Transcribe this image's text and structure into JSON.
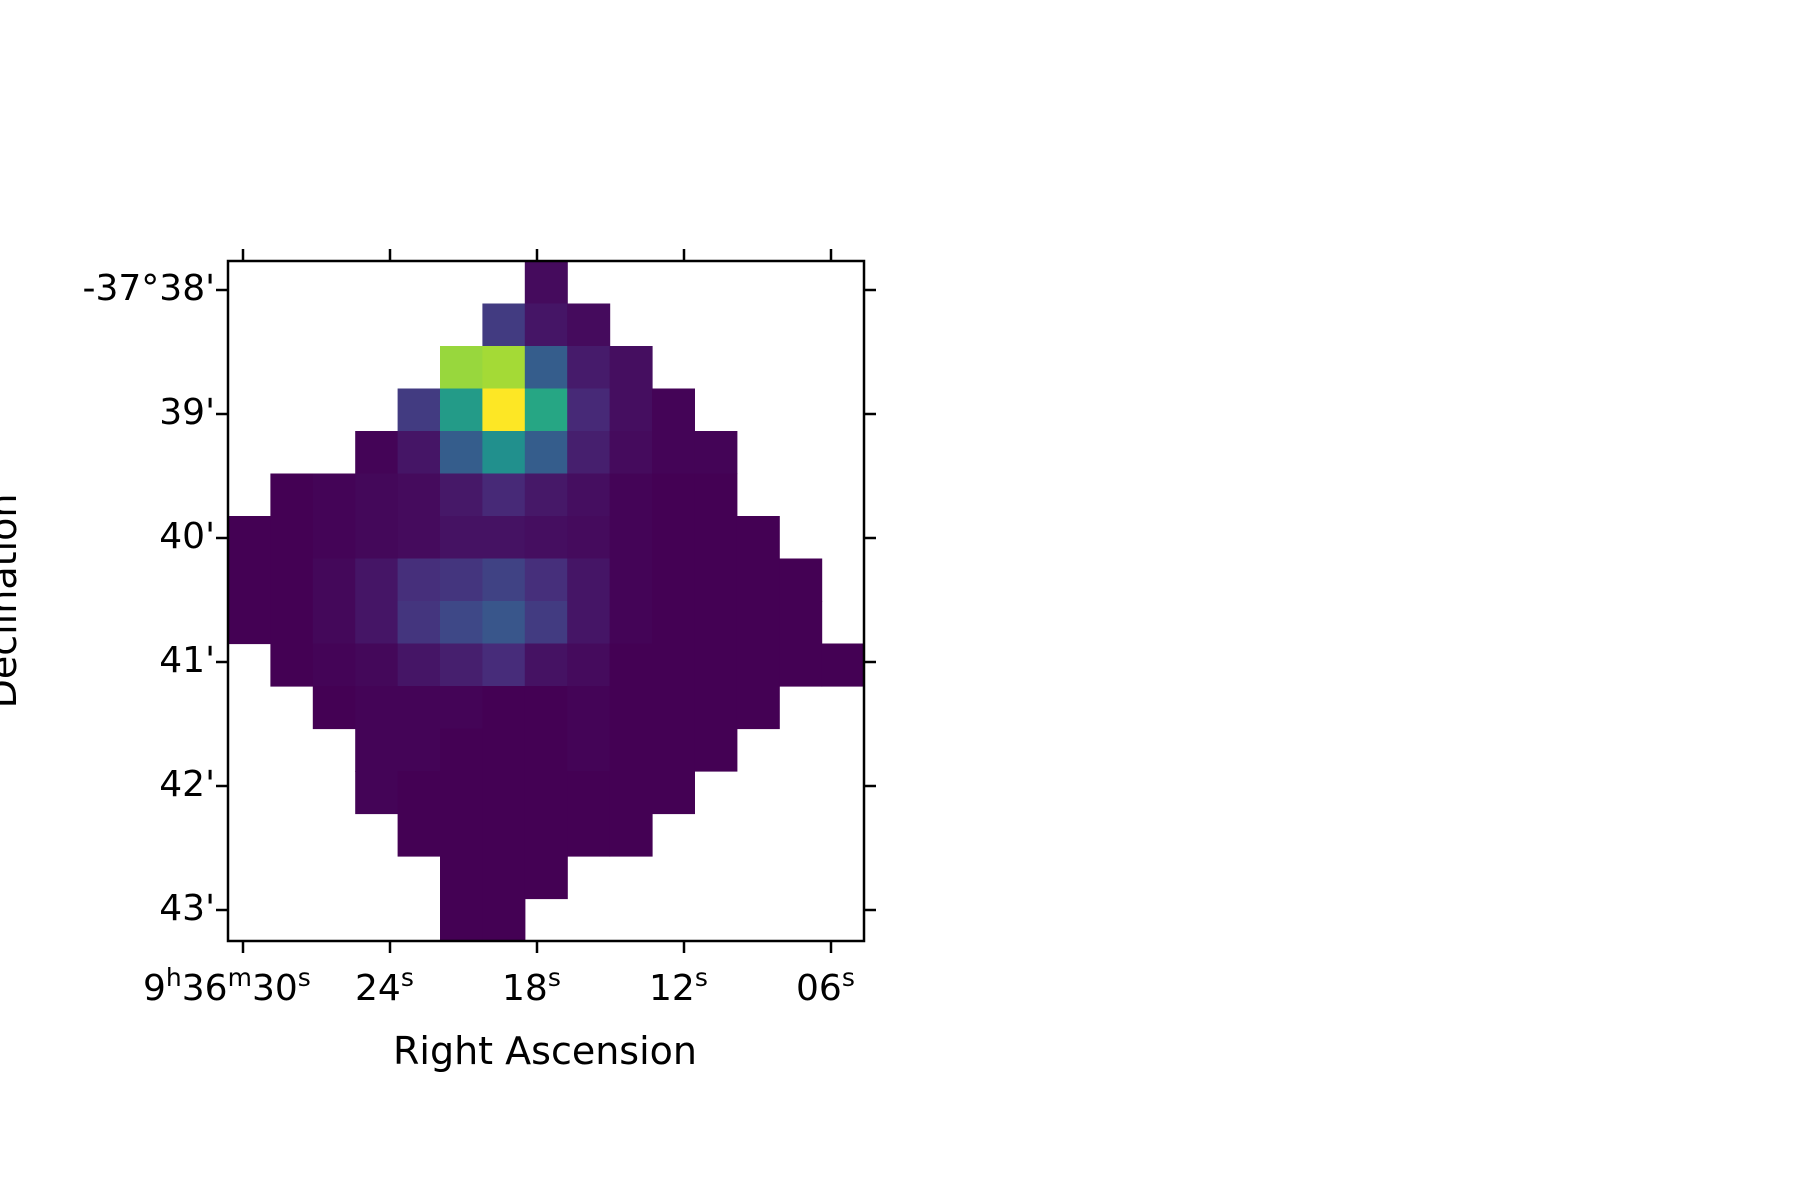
{
  "chart_data": {
    "type": "heatmap",
    "title": "",
    "xlabel": "Right Ascension",
    "ylabel": "Declination",
    "colormap": "viridis",
    "x_ticks": [
      {
        "main": "9",
        "unit1": "h",
        "mid": "36",
        "unit2": "m",
        "last": "30",
        "unit3": "s"
      },
      {
        "main": "24",
        "unit1": "s"
      },
      {
        "main": "18",
        "unit1": "s"
      },
      {
        "main": "12",
        "unit1": "s"
      },
      {
        "main": "06",
        "unit1": "s"
      }
    ],
    "y_ticks": [
      "-37°38'",
      "39'",
      "40'",
      "41'",
      "42'",
      "43'"
    ],
    "grid": false,
    "value_range": [
      0,
      1
    ],
    "pixel_values": [
      [
        null,
        null,
        null,
        null,
        null,
        null,
        null,
        0.03,
        null,
        null,
        null,
        null,
        null,
        null,
        null
      ],
      [
        null,
        null,
        null,
        null,
        null,
        null,
        0.18,
        0.06,
        0.03,
        null,
        null,
        null,
        null,
        null,
        null
      ],
      [
        null,
        null,
        null,
        null,
        null,
        0.85,
        0.87,
        0.3,
        0.08,
        0.04,
        null,
        null,
        null,
        null,
        null
      ],
      [
        null,
        null,
        null,
        null,
        0.18,
        0.55,
        1.0,
        0.6,
        0.12,
        0.04,
        0.01,
        null,
        null,
        null,
        null
      ],
      [
        null,
        null,
        null,
        0.01,
        0.06,
        0.3,
        0.5,
        0.3,
        0.09,
        0.03,
        0.01,
        0.01,
        null,
        null,
        null
      ],
      [
        null,
        0.0,
        0.01,
        0.02,
        0.03,
        0.07,
        0.12,
        0.07,
        0.04,
        0.01,
        0.0,
        0.0,
        null,
        null,
        null
      ],
      [
        0.0,
        0.0,
        0.01,
        0.02,
        0.03,
        0.05,
        0.05,
        0.04,
        0.03,
        0.01,
        0.0,
        0.0,
        0.0,
        null,
        null
      ],
      [
        0.0,
        0.0,
        0.02,
        0.06,
        0.14,
        0.16,
        0.2,
        0.14,
        0.06,
        0.01,
        0.0,
        0.0,
        0.0,
        0.0,
        null
      ],
      [
        0.0,
        0.0,
        0.02,
        0.06,
        0.16,
        0.22,
        0.27,
        0.18,
        0.06,
        0.01,
        0.0,
        0.0,
        0.0,
        0.0,
        null
      ],
      [
        null,
        0.0,
        0.01,
        0.02,
        0.06,
        0.09,
        0.13,
        0.05,
        0.03,
        0.0,
        0.0,
        0.0,
        0.0,
        0.0,
        0.0
      ],
      [
        null,
        null,
        0.0,
        0.01,
        0.01,
        0.01,
        0.0,
        0.0,
        0.01,
        0.0,
        0.0,
        0.0,
        0.0,
        null,
        null
      ],
      [
        null,
        null,
        null,
        0.01,
        0.01,
        0.0,
        0.0,
        0.0,
        0.01,
        0.0,
        0.0,
        0.0,
        null,
        null,
        null
      ],
      [
        null,
        null,
        null,
        0.01,
        0.0,
        0.0,
        0.0,
        0.0,
        0.0,
        0.0,
        0.0,
        null,
        null,
        null,
        null
      ],
      [
        null,
        null,
        null,
        null,
        0.0,
        0.0,
        0.0,
        0.0,
        0.0,
        0.0,
        null,
        null,
        null,
        null,
        null
      ],
      [
        null,
        null,
        null,
        null,
        null,
        0.0,
        0.0,
        0.0,
        null,
        null,
        null,
        null,
        null,
        null,
        null
      ],
      [
        null,
        null,
        null,
        null,
        null,
        0.0,
        0.0,
        null,
        null,
        null,
        null,
        null,
        null,
        null,
        null
      ]
    ]
  }
}
